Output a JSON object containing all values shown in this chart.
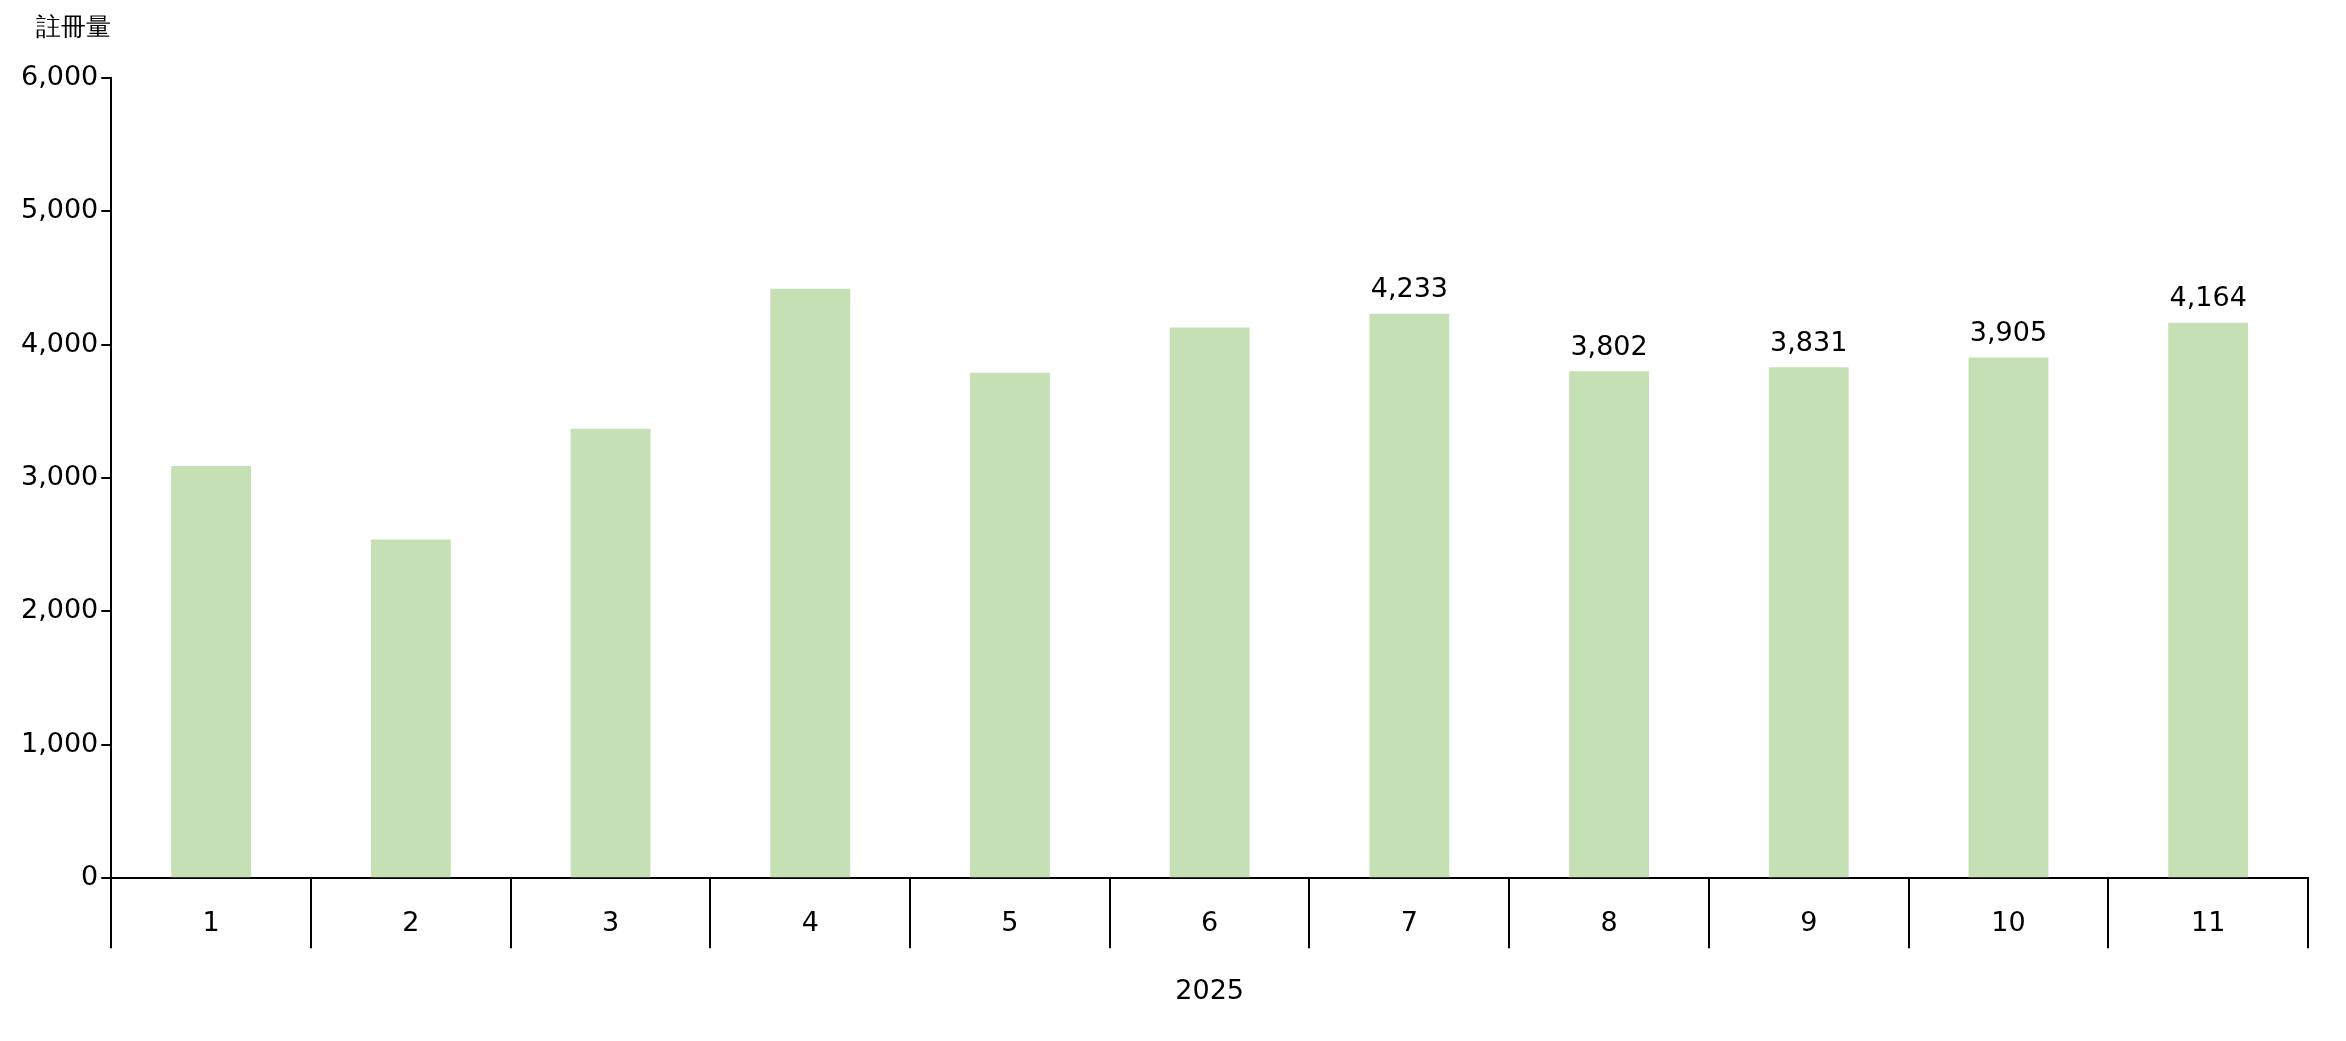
{
  "chart_data": {
    "type": "bar",
    "ylabel": "註冊量",
    "xlabel": "2025",
    "categories": [
      "1",
      "2",
      "3",
      "4",
      "5",
      "6",
      "7",
      "8",
      "9",
      "10",
      "11"
    ],
    "values": [
      3090,
      2540,
      3370,
      4420,
      3790,
      4130,
      4233,
      3802,
      3831,
      3905,
      4164
    ],
    "value_labels": [
      null,
      null,
      null,
      null,
      null,
      null,
      "4,233",
      "3,802",
      "3,831",
      "3,905",
      "4,164"
    ],
    "color": "#c5e0b4",
    "ylim": [
      0,
      6000
    ],
    "yticks": [
      {
        "value": 0,
        "label": "0"
      },
      {
        "value": 1000,
        "label": "1,000"
      },
      {
        "value": 2000,
        "label": "2,000"
      },
      {
        "value": 3000,
        "label": "3,000"
      },
      {
        "value": 4000,
        "label": "4,000"
      },
      {
        "value": 5000,
        "label": "5,000"
      },
      {
        "value": 6000,
        "label": "6,000"
      }
    ],
    "grid": false,
    "legend": false
  }
}
